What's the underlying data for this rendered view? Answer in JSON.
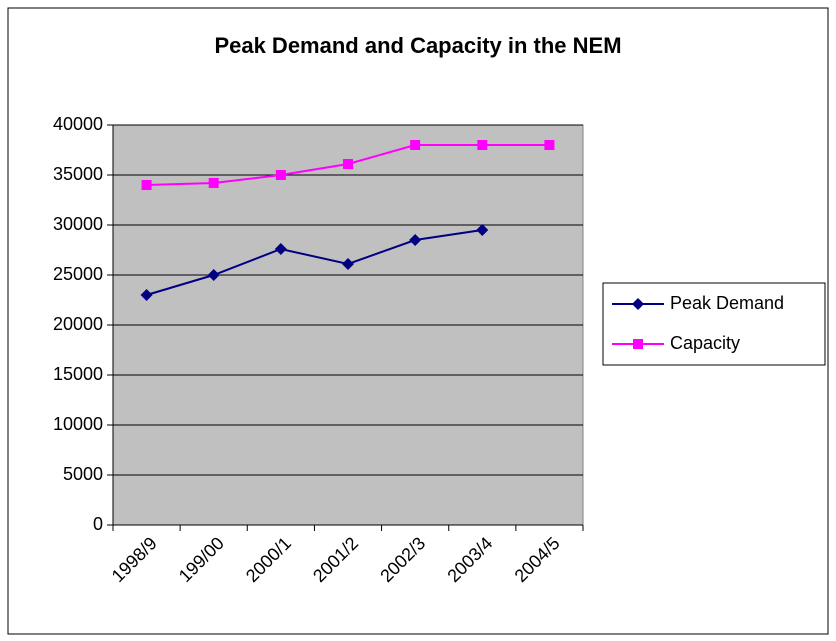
{
  "chart_data": {
    "type": "line",
    "title": "Peak Demand and Capacity in the NEM",
    "categories": [
      "1998/9",
      "199/00",
      "2000/1",
      "2001/2",
      "2002/3",
      "2003/4",
      "2004/5"
    ],
    "series": [
      {
        "name": "Peak Demand",
        "color": "#000080",
        "marker": "diamond",
        "values": [
          23000,
          25000,
          27600,
          26100,
          28500,
          29500,
          null
        ]
      },
      {
        "name": "Capacity",
        "color": "#ff00ff",
        "marker": "square",
        "values": [
          34000,
          34200,
          35000,
          36100,
          38000,
          38000,
          38000
        ]
      }
    ],
    "ylim": [
      0,
      40000
    ],
    "yticks": [
      0,
      5000,
      10000,
      15000,
      20000,
      25000,
      30000,
      35000,
      40000
    ],
    "grid": true,
    "legend": "right",
    "plot_background": "#c0c0c0"
  }
}
